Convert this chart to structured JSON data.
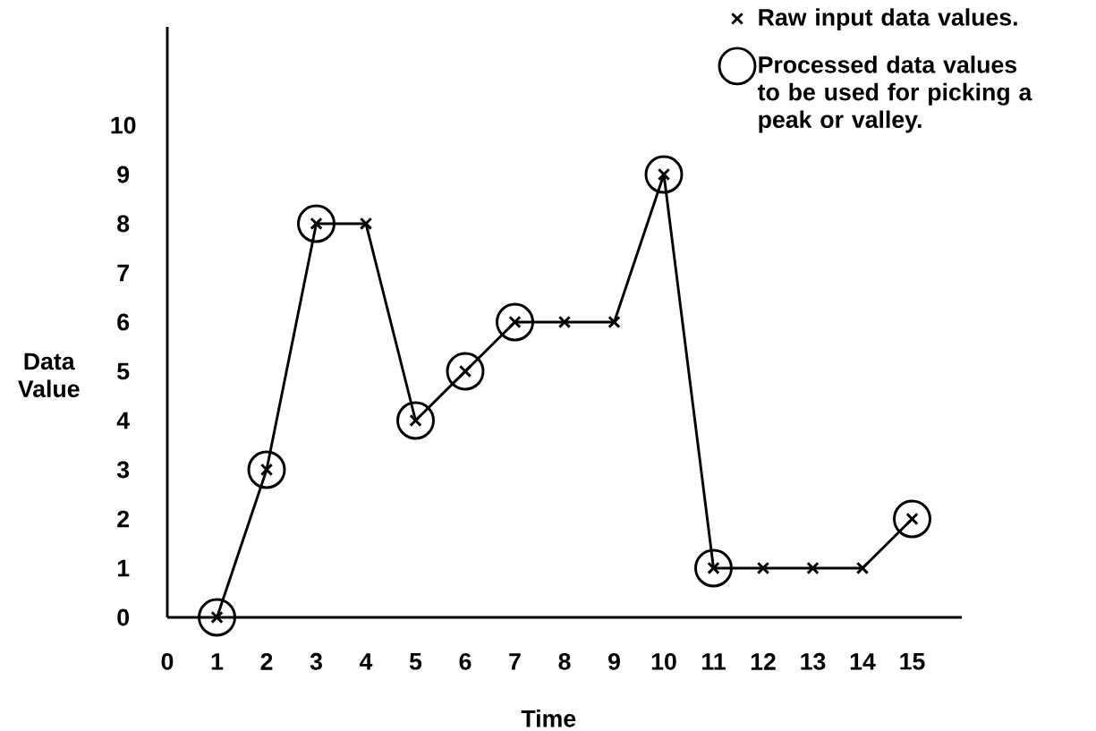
{
  "chart_data": {
    "type": "line",
    "xlabel": "Time",
    "ylabel": "Data Value",
    "x": [
      1,
      2,
      3,
      4,
      5,
      6,
      7,
      8,
      9,
      10,
      11,
      12,
      13,
      14,
      15
    ],
    "xlim": [
      0,
      16
    ],
    "ylim": [
      0,
      12
    ],
    "xticks": [
      0,
      1,
      2,
      3,
      4,
      5,
      6,
      7,
      8,
      9,
      10,
      11,
      12,
      13,
      14,
      15
    ],
    "yticks": [
      0,
      1,
      2,
      3,
      4,
      5,
      6,
      7,
      8,
      9,
      10
    ],
    "legend": "top right",
    "series": [
      {
        "name": "Raw input data values.",
        "color": "#000000",
        "marker": "cross",
        "values": [
          0,
          3,
          8,
          8,
          4,
          5,
          6,
          6,
          6,
          9,
          1,
          1,
          1,
          1,
          2
        ]
      },
      {
        "name": "Processed data values to be used for picking a peak or valley.",
        "type": "scatter",
        "color": "#000000",
        "marker": "circle",
        "x": [
          1,
          2,
          3,
          5,
          6,
          7,
          10,
          11,
          15
        ],
        "values": [
          0,
          3,
          8,
          4,
          5,
          6,
          9,
          1,
          2
        ]
      }
    ]
  }
}
